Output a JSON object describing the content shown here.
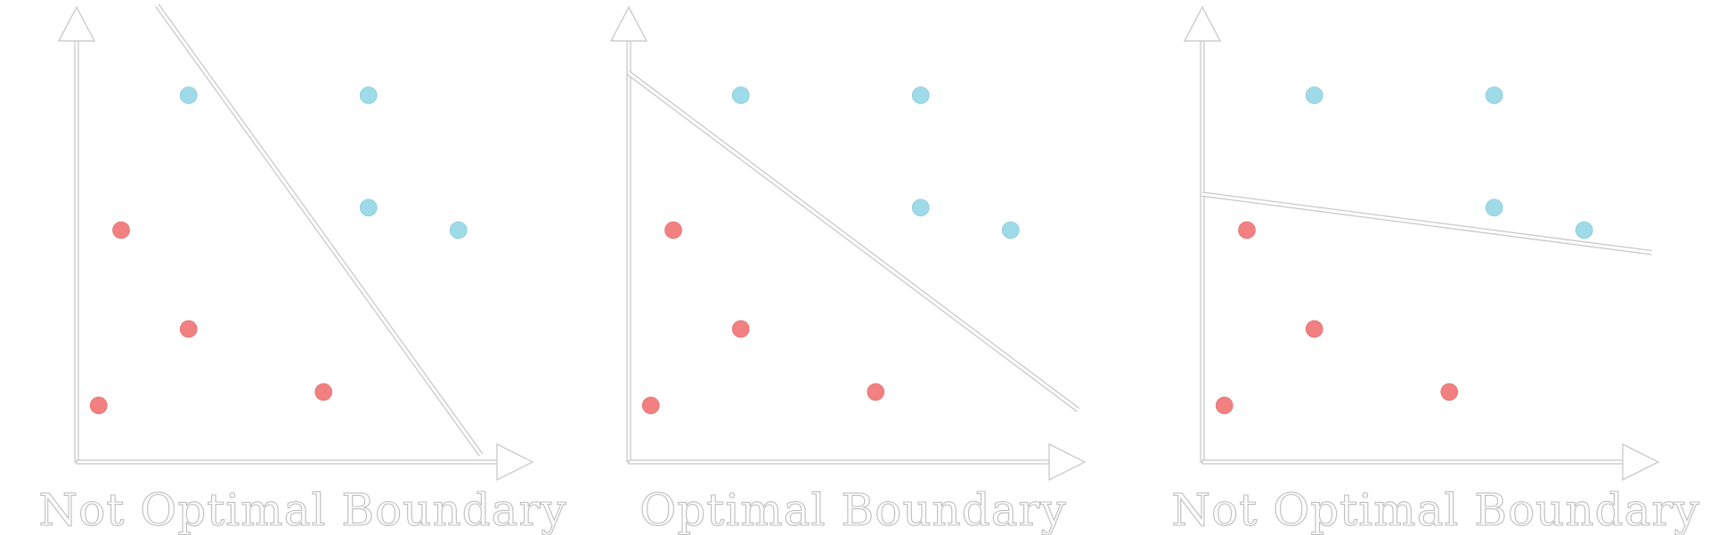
{
  "colors": {
    "class_a": "#f28080",
    "class_a_edge": "#d96a6a",
    "class_b": "#9edae8",
    "class_b_edge": "#7ec3d3",
    "outline": "#c4c4c4"
  },
  "points": {
    "class_b": [
      [
        1.5,
        8.0
      ],
      [
        5.5,
        8.0
      ],
      [
        5.5,
        5.5
      ],
      [
        7.5,
        5.0
      ]
    ],
    "class_a": [
      [
        0.0,
        5.0
      ],
      [
        1.5,
        2.8
      ],
      [
        4.5,
        1.4
      ],
      [
        -0.5,
        1.1
      ]
    ]
  },
  "panels": [
    {
      "caption": "Not Optimal Boundary",
      "boundary": [
        [
          0.8,
          10.0
        ],
        [
          8.0,
          0.0
        ]
      ]
    },
    {
      "caption": "Optimal Boundary",
      "boundary": [
        [
          -1.0,
          8.5
        ],
        [
          9.0,
          1.0
        ]
      ]
    },
    {
      "caption": "Not Optimal Boundary",
      "boundary": [
        [
          -1.0,
          5.8
        ],
        [
          9.0,
          4.5
        ]
      ]
    }
  ]
}
